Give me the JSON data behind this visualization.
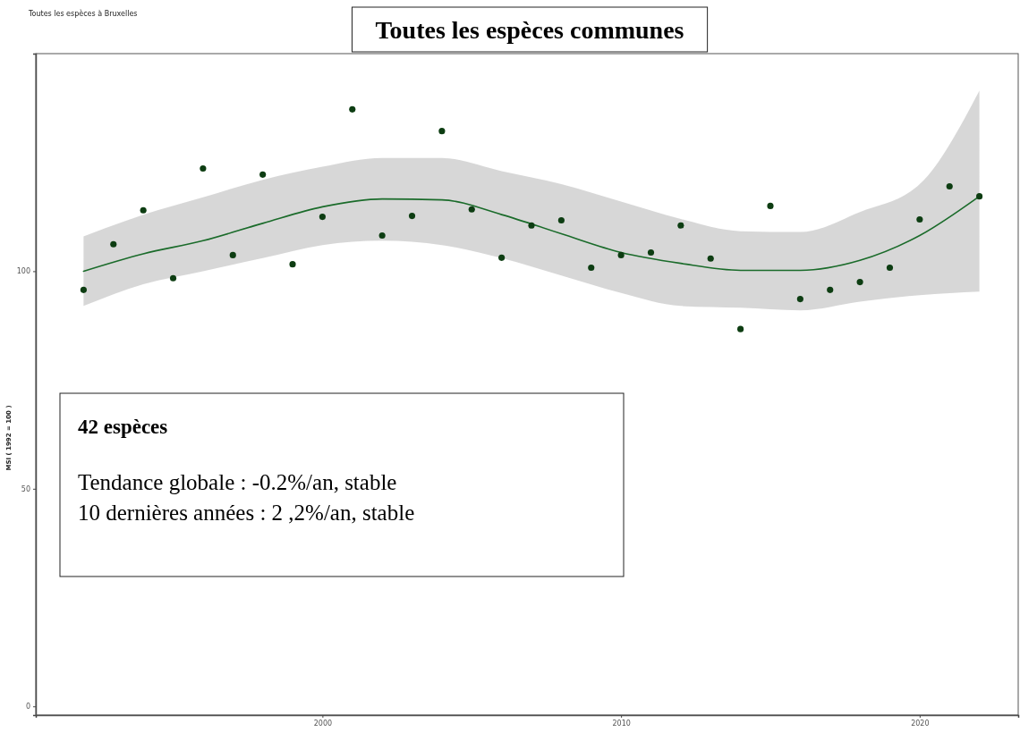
{
  "chart_data": {
    "type": "scatter",
    "title": "Toutes les espèces communes",
    "subtitle": "Toutes les espèces à Bruxelles",
    "ylabel": "MSI ( 1992 = 100 )",
    "x": [
      1992,
      1993,
      1994,
      1995,
      1996,
      1997,
      1998,
      1999,
      2000,
      2001,
      2002,
      2003,
      2004,
      2005,
      2006,
      2007,
      2008,
      2009,
      2010,
      2011,
      2012,
      2013,
      2014,
      2015,
      2016,
      2017,
      2018,
      2019,
      2020,
      2021,
      2022
    ],
    "series": [
      {
        "color": "#0d3d12",
        "marker": "circle",
        "values": [
          95.7,
          106.2,
          114,
          98.4,
          123.6,
          103.7,
          122.2,
          101.6,
          112.5,
          137.2,
          108.2,
          112.7,
          132.2,
          114.2,
          103.1,
          110.5,
          111.7,
          100.8,
          103.7,
          104.3,
          110.5,
          102.9,
          86.7,
          115,
          93.6,
          95.7,
          97.5,
          100.8,
          111.9,
          119.5,
          117.2
        ]
      },
      {
        "type": "line",
        "color": "#1a6b2a",
        "line_style": "solid",
        "x": [
          1992,
          1994,
          1996,
          1998,
          2000,
          2002,
          2004,
          2006,
          2008,
          2010,
          2012,
          2014,
          2016,
          2018,
          2020,
          2022
        ],
        "values": [
          100,
          104,
          107,
          111,
          114.8,
          116.6,
          116.4,
          113,
          108.6,
          104.3,
          101.8,
          100.2,
          100.2,
          102.5,
          108.2,
          117.2
        ],
        "lower": [
          92,
          97,
          100,
          103,
          106,
          107,
          106,
          103,
          99,
          95,
          92,
          91.6,
          91,
          93,
          94.5,
          95.3
        ],
        "upper": [
          108,
          113,
          117,
          121,
          124,
          126,
          126,
          123,
          120,
          116,
          112,
          109.2,
          109,
          113.6,
          120,
          141.5
        ]
      }
    ],
    "xlim": [
      1990.4,
      2023.3
    ],
    "xticks": [
      2000,
      2010,
      2020
    ],
    "ylim": [
      -2,
      150
    ],
    "yticks": [
      0,
      50,
      100
    ],
    "grid": false,
    "annotations": [
      "42 espèces",
      "Tendance globale : -0.2%/an, stable",
      "10 dernières années : 2 ,2%/an, stable"
    ]
  }
}
